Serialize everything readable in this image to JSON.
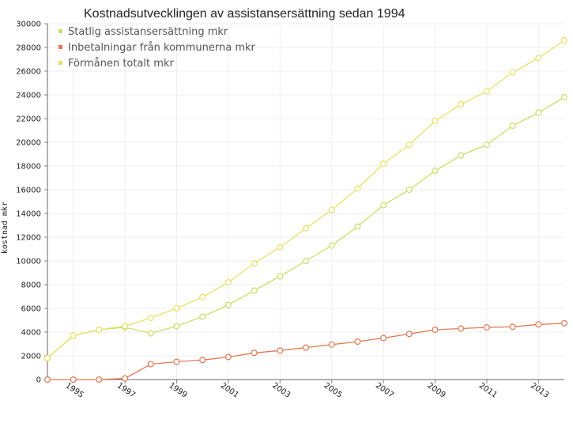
{
  "chart_data": {
    "type": "line",
    "title": "Kostnadsutvecklingen av assistansersättning sedan 1994",
    "xlabel": "",
    "ylabel": "kostnad mkr",
    "ylim": [
      0,
      30000
    ],
    "ytick_step": 2000,
    "xlim": [
      1994,
      2014
    ],
    "x": [
      1994,
      1995,
      1996,
      1997,
      1998,
      1999,
      2000,
      2001,
      2002,
      2003,
      2004,
      2005,
      2006,
      2007,
      2008,
      2009,
      2010,
      2011,
      2012,
      2013,
      2014
    ],
    "xtick_labels": [
      "1995",
      "1997",
      "1999",
      "2001",
      "2003",
      "2005",
      "2007",
      "2009",
      "2011",
      "2013"
    ],
    "grid": true,
    "legend_position": "top-left",
    "series": [
      {
        "name": "Statlig assistansersättning mkr",
        "color": "#c8df6a",
        "values": [
          1800,
          3700,
          4200,
          4400,
          3900,
          4500,
          5300,
          6300,
          7500,
          8700,
          10000,
          11300,
          12900,
          14700,
          16000,
          17600,
          18900,
          19800,
          21400,
          22500,
          23800
        ]
      },
      {
        "name": "Inbetalningar från kommunerna mkr",
        "color": "#e07a55",
        "values": [
          0,
          0,
          0,
          100,
          1300,
          1500,
          1650,
          1900,
          2250,
          2450,
          2700,
          2950,
          3200,
          3500,
          3850,
          4200,
          4300,
          4400,
          4450,
          4650,
          4750
        ]
      },
      {
        "name": "Förmånen totalt mkr",
        "color": "#e6e26a",
        "values": [
          1800,
          3700,
          4200,
          4500,
          5200,
          6000,
          6950,
          8200,
          9800,
          11150,
          12750,
          14300,
          16100,
          18200,
          19800,
          21800,
          23200,
          24300,
          25900,
          27100,
          28600
        ]
      }
    ]
  }
}
